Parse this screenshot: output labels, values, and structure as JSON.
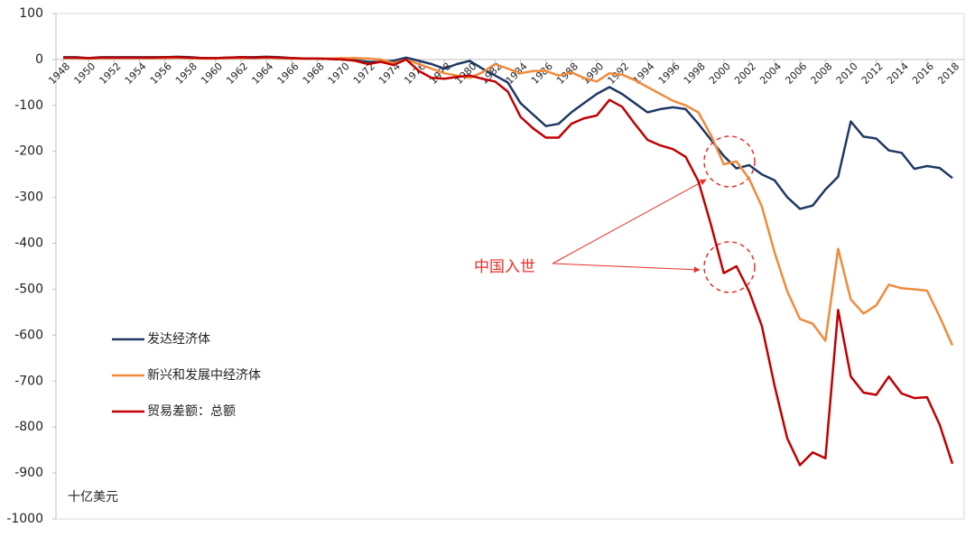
{
  "chart_data": {
    "type": "line",
    "x": [
      1948,
      1949,
      1950,
      1951,
      1952,
      1953,
      1954,
      1955,
      1956,
      1957,
      1958,
      1959,
      1960,
      1961,
      1962,
      1963,
      1964,
      1965,
      1966,
      1967,
      1968,
      1969,
      1970,
      1971,
      1972,
      1973,
      1974,
      1975,
      1976,
      1977,
      1978,
      1979,
      1980,
      1981,
      1982,
      1983,
      1984,
      1985,
      1986,
      1987,
      1988,
      1989,
      1990,
      1991,
      1992,
      1993,
      1994,
      1995,
      1996,
      1997,
      1998,
      1999,
      2000,
      2001,
      2002,
      2003,
      2004,
      2005,
      2006,
      2007,
      2008,
      2009,
      2010,
      2011,
      2012,
      2013,
      2014,
      2015,
      2016,
      2017,
      2018
    ],
    "series": [
      {
        "name": "发达经济体",
        "color": "#1f3864",
        "values": [
          5,
          5,
          3,
          5,
          5,
          5,
          5,
          5,
          5,
          6,
          5,
          3,
          3,
          4,
          5,
          5,
          6,
          5,
          3,
          2,
          2,
          1,
          0,
          -2,
          -5,
          -5,
          -3,
          4,
          -3,
          -10,
          -20,
          -10,
          -3,
          -20,
          -35,
          -50,
          -95,
          -120,
          -145,
          -140,
          -115,
          -95,
          -75,
          -60,
          -75,
          -95,
          -115,
          -108,
          -104,
          -108,
          -140,
          -175,
          -210,
          -237,
          -230,
          -250,
          -263,
          -300,
          -325,
          -318,
          -283,
          -255,
          -135,
          -168,
          -172,
          -198,
          -203,
          -238,
          -232,
          -236,
          -258
        ]
      },
      {
        "name": "新兴和发展中经济体",
        "color": "#ef8b3c",
        "values": [
          3,
          3,
          2,
          3,
          3,
          3,
          3,
          3,
          3,
          4,
          3,
          2,
          2,
          3,
          3,
          3,
          4,
          3,
          2,
          2,
          2,
          2,
          3,
          3,
          2,
          0,
          -8,
          0,
          -10,
          -20,
          -30,
          -35,
          -40,
          -28,
          -10,
          -20,
          -30,
          -25,
          -25,
          -35,
          -28,
          -40,
          -48,
          -30,
          -33,
          -45,
          -60,
          -75,
          -90,
          -100,
          -115,
          -165,
          -228,
          -222,
          -260,
          -320,
          -420,
          -505,
          -565,
          -575,
          -612,
          -412,
          -522,
          -553,
          -535,
          -490,
          -498,
          -500,
          -503,
          -560,
          -622
        ]
      },
      {
        "name": "贸易差额：总额",
        "color": "#c00000",
        "values": [
          4,
          4,
          3,
          4,
          4,
          4,
          4,
          4,
          5,
          5,
          4,
          3,
          3,
          4,
          5,
          4,
          5,
          4,
          3,
          2,
          2,
          1,
          0,
          -3,
          -10,
          -5,
          -12,
          0,
          -25,
          -40,
          -42,
          -38,
          -35,
          -42,
          -48,
          -70,
          -125,
          -150,
          -170,
          -170,
          -140,
          -128,
          -122,
          -88,
          -103,
          -140,
          -175,
          -187,
          -195,
          -212,
          -265,
          -360,
          -465,
          -450,
          -505,
          -580,
          -710,
          -825,
          -883,
          -855,
          -868,
          -545,
          -690,
          -725,
          -730,
          -690,
          -727,
          -737,
          -735,
          -795,
          -880
        ]
      }
    ],
    "xlim": [
      1948,
      2018
    ],
    "xticks": [
      1948,
      1950,
      1952,
      1954,
      1956,
      1958,
      1960,
      1962,
      1964,
      1966,
      1968,
      1970,
      1972,
      1974,
      1976,
      1978,
      1980,
      1982,
      1984,
      1986,
      1988,
      1990,
      1992,
      1994,
      1996,
      1998,
      2000,
      2002,
      2004,
      2006,
      2008,
      2010,
      2012,
      2014,
      2016,
      2018
    ],
    "ylim": [
      -1000,
      100
    ],
    "yticks": [
      100,
      0,
      -100,
      -200,
      -300,
      -400,
      -500,
      -600,
      -700,
      -800,
      -900,
      -1000
    ],
    "ylabel": "十亿美元",
    "annotation": "中国入世",
    "legend": "left",
    "grid": false
  }
}
